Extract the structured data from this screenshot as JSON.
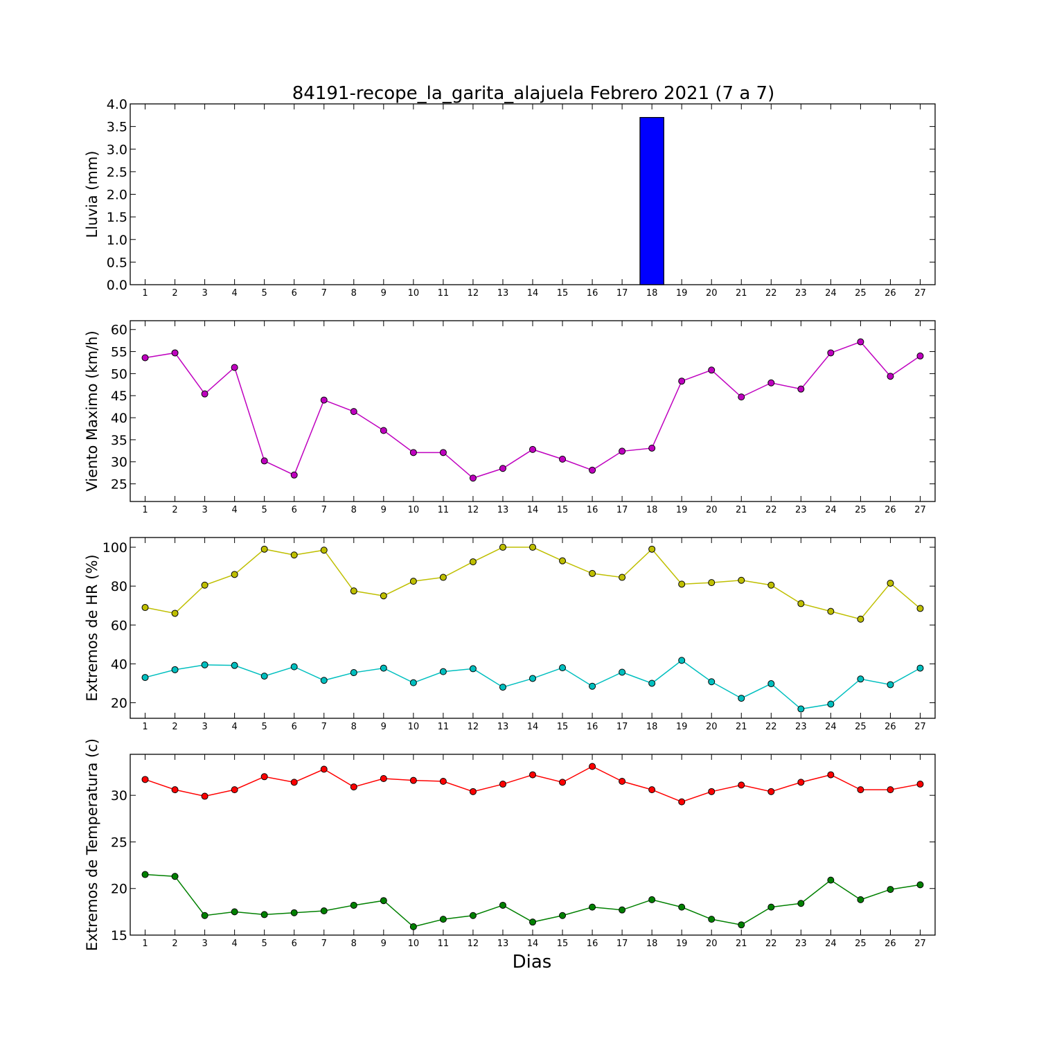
{
  "figure": {
    "title": "84191-recope_la_garita_alajuela Febrero 2021  (7 a 7)",
    "xlabel": "Dias"
  },
  "chart_data": [
    {
      "type": "bar",
      "ylabel": "Lluvia (mm)",
      "ylim": [
        0,
        4.0
      ],
      "yticks": [
        "0.0",
        "0.5",
        "1.0",
        "1.5",
        "2.0",
        "2.5",
        "3.0",
        "3.5",
        "4.0"
      ],
      "categories": [
        1,
        2,
        3,
        4,
        5,
        6,
        7,
        8,
        9,
        10,
        11,
        12,
        13,
        14,
        15,
        16,
        17,
        18,
        19,
        20,
        21,
        22,
        23,
        24,
        25,
        26,
        27
      ],
      "values": [
        0,
        0,
        0,
        0,
        0,
        0,
        0,
        0,
        0,
        0,
        0,
        0,
        0,
        0,
        0,
        0,
        0,
        3.7,
        0,
        0,
        0,
        0,
        0,
        0,
        0,
        0,
        0
      ],
      "color": "#0000ff",
      "grid": false
    },
    {
      "type": "line",
      "ylabel": "Viento Maximo (km/h)",
      "ylim": [
        21,
        62
      ],
      "yticks": [
        "25",
        "30",
        "35",
        "40",
        "45",
        "50",
        "55",
        "60"
      ],
      "x": [
        1,
        2,
        3,
        4,
        5,
        6,
        7,
        8,
        9,
        10,
        11,
        12,
        13,
        14,
        15,
        16,
        17,
        18,
        19,
        20,
        21,
        22,
        23,
        24,
        25,
        26,
        27
      ],
      "series": [
        {
          "color": "#bf00bf",
          "values": [
            53.6,
            54.7,
            45.4,
            51.4,
            30.2,
            27.0,
            44.0,
            41.4,
            37.1,
            32.1,
            32.1,
            26.3,
            28.5,
            32.8,
            30.6,
            28.1,
            32.4,
            33.1,
            48.3,
            50.8,
            44.7,
            47.9,
            46.5,
            54.7,
            57.2,
            49.4,
            54.0
          ]
        }
      ],
      "grid": false
    },
    {
      "type": "line",
      "ylabel": "Extremos de HR (%)",
      "ylim": [
        12,
        105
      ],
      "yticks": [
        "20",
        "40",
        "60",
        "80",
        "100"
      ],
      "x": [
        1,
        2,
        3,
        4,
        5,
        6,
        7,
        8,
        9,
        10,
        11,
        12,
        13,
        14,
        15,
        16,
        17,
        18,
        19,
        20,
        21,
        22,
        23,
        24,
        25,
        26,
        27
      ],
      "series": [
        {
          "color": "#bfbf00",
          "values": [
            69,
            66,
            80.5,
            86,
            99,
            96,
            98.5,
            77.5,
            75,
            82.5,
            84.5,
            92.5,
            100,
            100,
            93,
            86.5,
            84.5,
            99,
            81,
            81.8,
            83,
            80.5,
            71,
            67,
            63,
            81.5,
            68.5
          ]
        },
        {
          "color": "#00bfbf",
          "values": [
            33,
            37,
            39.5,
            39.2,
            33.7,
            38.5,
            31.5,
            35.5,
            37.8,
            30.3,
            36,
            37.5,
            28,
            32.5,
            38,
            28.5,
            35.7,
            30,
            41.8,
            30.8,
            22.3,
            29.8,
            16.8,
            19.3,
            32.2,
            29.3,
            37.8
          ]
        }
      ],
      "grid": false
    },
    {
      "type": "line",
      "ylabel": "Extremos de Temperatura (c)",
      "ylim": [
        15,
        34.4
      ],
      "yticks": [
        "15",
        "20",
        "25",
        "30"
      ],
      "x": [
        1,
        2,
        3,
        4,
        5,
        6,
        7,
        8,
        9,
        10,
        11,
        12,
        13,
        14,
        15,
        16,
        17,
        18,
        19,
        20,
        21,
        22,
        23,
        24,
        25,
        26,
        27
      ],
      "series": [
        {
          "color": "#ff0000",
          "values": [
            31.7,
            30.6,
            29.9,
            30.6,
            32.0,
            31.4,
            32.8,
            30.9,
            31.8,
            31.6,
            31.5,
            30.4,
            31.2,
            32.2,
            31.4,
            33.1,
            31.5,
            30.6,
            29.3,
            30.4,
            31.1,
            30.4,
            31.4,
            32.2,
            30.6,
            30.6,
            31.2
          ]
        },
        {
          "color": "#008000",
          "values": [
            21.5,
            21.3,
            17.1,
            17.5,
            17.2,
            17.4,
            17.6,
            18.2,
            18.7,
            15.9,
            16.7,
            17.1,
            18.2,
            16.4,
            17.1,
            18.0,
            17.7,
            18.8,
            18.0,
            16.7,
            16.1,
            18.0,
            18.4,
            20.9,
            18.8,
            19.9,
            20.4
          ]
        }
      ],
      "grid": false
    }
  ]
}
